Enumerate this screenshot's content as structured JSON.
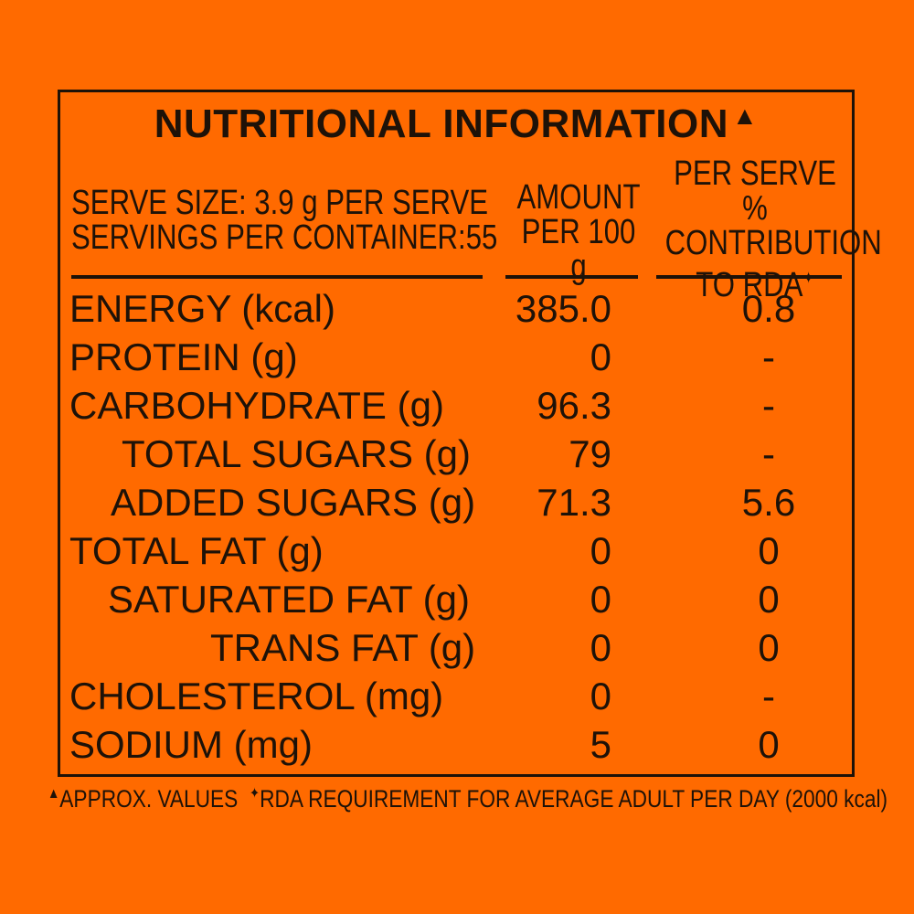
{
  "title": "NUTRITIONAL INFORMATION",
  "title_symbol": "▲",
  "serve_size": "SERVE SIZE: 3.9 g PER SERVE",
  "servings_per_container": "SERVINGS PER CONTAINER:55",
  "col_amount": [
    "AMOUNT",
    "PER 100 g"
  ],
  "col_rda": [
    "PER SERVE %",
    "CONTRIBUTION",
    "TO RDA"
  ],
  "rda_symbol": "✦",
  "rows": [
    {
      "label": "ENERGY (kcal)",
      "amount": "385.0",
      "rda": "0.8"
    },
    {
      "label": "PROTEIN (g)",
      "amount": "0",
      "rda": "-"
    },
    {
      "label": "CARBOHYDRATE (g)",
      "amount": "96.3",
      "rda": "-"
    },
    {
      "label": "TOTAL SUGARS (g)",
      "amount": "79",
      "rda": "-"
    },
    {
      "label": "ADDED SUGARS (g)",
      "amount": "71.3",
      "rda": "5.6"
    },
    {
      "label": "TOTAL FAT (g)",
      "amount": "0",
      "rda": "0"
    },
    {
      "label": "SATURATED FAT (g)",
      "amount": "0",
      "rda": "0"
    },
    {
      "label": "TRANS FAT (g)",
      "amount": "0",
      "rda": "0"
    },
    {
      "label": "CHOLESTEROL (mg)",
      "amount": "0",
      "rda": "-"
    },
    {
      "label": "SODIUM (mg)",
      "amount": "5",
      "rda": "0"
    }
  ],
  "footnote_approx": "APPROX. VALUES",
  "footnote_rda": "RDA REQUIREMENT FOR AVERAGE ADULT PER DAY (2000 kcal)",
  "colors": {
    "background": "#ff6a00",
    "ink": "#1e1208"
  }
}
